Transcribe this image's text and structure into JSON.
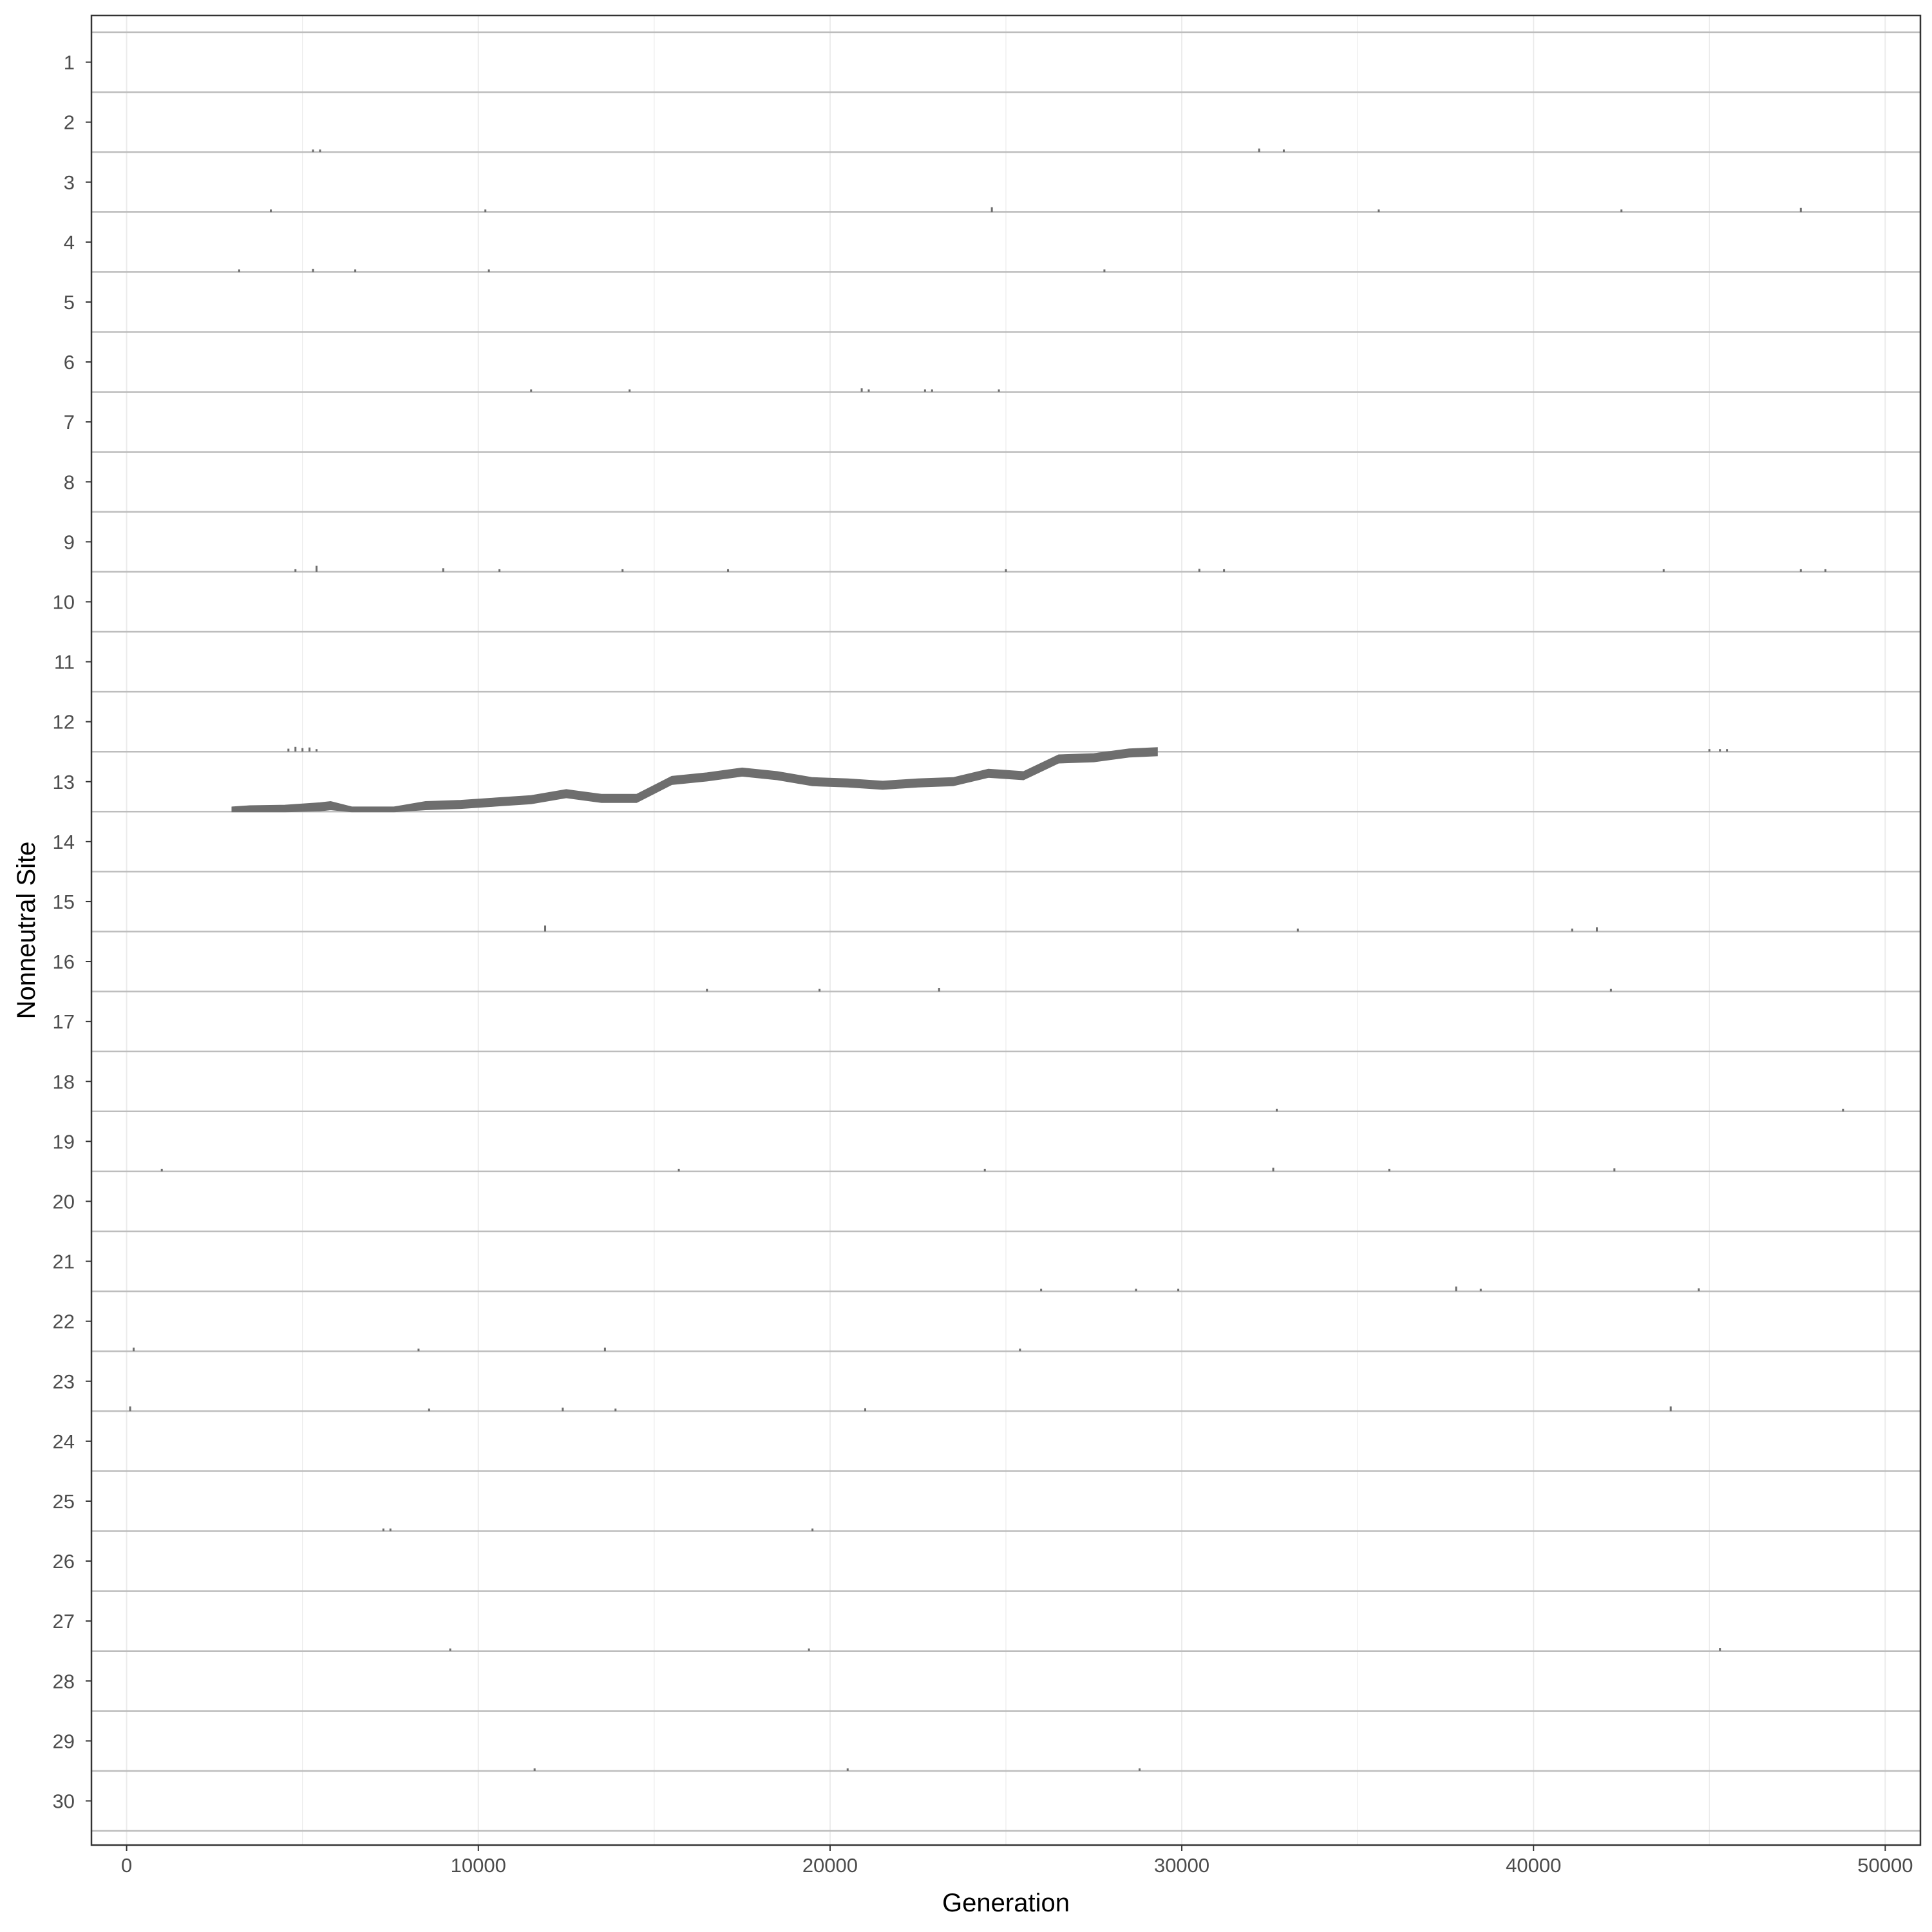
{
  "chart_data": {
    "type": "area",
    "title": "",
    "xlabel": "Generation",
    "ylabel": "Nonneutral Site",
    "xlim": [
      -1000,
      51000
    ],
    "x_ticks": [
      0,
      10000,
      20000,
      30000,
      40000,
      50000
    ],
    "x_tick_labels": [
      "0",
      "10000",
      "20000",
      "30000",
      "40000",
      "50000"
    ],
    "sites": [
      "1",
      "2",
      "3",
      "4",
      "5",
      "6",
      "7",
      "8",
      "9",
      "10",
      "11",
      "12",
      "13",
      "14",
      "15",
      "16",
      "17",
      "18",
      "19",
      "20",
      "21",
      "22",
      "23",
      "24",
      "25",
      "26",
      "27",
      "28",
      "29",
      "30"
    ],
    "value_scale": "allele frequency (0-1) drawn as ridge height within each site row",
    "grid": true,
    "legend": "none",
    "colors": {
      "ridge": "#6e6e6e",
      "baseline": "#bdbdbd",
      "grid": "#ebebeb",
      "panel_border": "#333333"
    },
    "series": [
      {
        "site": "2",
        "x": [
          5300,
          5500,
          32200,
          32900
        ],
        "y": [
          0.04,
          0.03,
          0.06,
          0.03
        ]
      },
      {
        "site": "3",
        "x": [
          4100,
          10200,
          24600,
          35600,
          42500,
          47600
        ],
        "y": [
          0.03,
          0.03,
          0.08,
          0.04,
          0.03,
          0.07
        ]
      },
      {
        "site": "4",
        "x": [
          3200,
          5300,
          6500,
          10300,
          27800
        ],
        "y": [
          0.03,
          0.05,
          0.04,
          0.03,
          0.04
        ]
      },
      {
        "site": "6",
        "x": [
          11500,
          14300,
          20900,
          21100,
          22700,
          22900,
          24800
        ],
        "y": [
          0.03,
          0.03,
          0.06,
          0.04,
          0.04,
          0.04,
          0.03
        ]
      },
      {
        "site": "9",
        "x": [
          4800,
          5400,
          9000,
          10600,
          14100,
          17100,
          25000,
          30500,
          31200,
          43700,
          47600,
          48300
        ],
        "y": [
          0.04,
          0.1,
          0.06,
          0.04,
          0.03,
          0.04,
          0.04,
          0.05,
          0.03,
          0.04,
          0.04,
          0.03
        ]
      },
      {
        "site": "12",
        "x": [
          4600,
          4800,
          5000,
          5200,
          5400,
          45000,
          45300,
          45500
        ],
        "y": [
          0.05,
          0.08,
          0.06,
          0.07,
          0.04,
          0.03,
          0.04,
          0.03
        ]
      },
      {
        "site": "13",
        "x": [
          3000,
          3500,
          4500,
          5500,
          5800,
          6400,
          7600,
          8500,
          9500,
          10500,
          11500,
          12500,
          13500,
          14500,
          15500,
          16500,
          17500,
          18500,
          19500,
          20500,
          21500,
          22500,
          23500,
          24500,
          25500,
          26500,
          27500,
          28500,
          29300
        ],
        "y": [
          0.01,
          0.03,
          0.04,
          0.08,
          0.1,
          0.01,
          0.01,
          0.1,
          0.12,
          0.16,
          0.2,
          0.3,
          0.22,
          0.22,
          0.52,
          0.58,
          0.66,
          0.6,
          0.5,
          0.48,
          0.44,
          0.48,
          0.5,
          0.64,
          0.6,
          0.88,
          0.9,
          0.98,
          1.0
        ]
      },
      {
        "site": "15",
        "x": [
          11900,
          33300,
          41100,
          41800
        ],
        "y": [
          0.1,
          0.05,
          0.05,
          0.07
        ]
      },
      {
        "site": "16",
        "x": [
          16500,
          19700,
          23100,
          42200
        ],
        "y": [
          0.03,
          0.03,
          0.06,
          0.02
        ]
      },
      {
        "site": "18",
        "x": [
          32700,
          48800
        ],
        "y": [
          0.04,
          0.04
        ]
      },
      {
        "site": "19",
        "x": [
          1000,
          15700,
          24400,
          32600,
          35900,
          42300
        ],
        "y": [
          0.03,
          0.03,
          0.03,
          0.06,
          0.04,
          0.05
        ]
      },
      {
        "site": "21",
        "x": [
          26000,
          28700,
          29900,
          37800,
          38500,
          44700
        ],
        "y": [
          0.04,
          0.03,
          0.04,
          0.08,
          0.04,
          0.05
        ]
      },
      {
        "site": "22",
        "x": [
          200,
          8300,
          13600,
          25400
        ],
        "y": [
          0.06,
          0.03,
          0.06,
          0.04
        ]
      },
      {
        "site": "23",
        "x": [
          100,
          8600,
          12400,
          13900,
          21000,
          43900
        ],
        "y": [
          0.08,
          0.03,
          0.06,
          0.03,
          0.05,
          0.08
        ]
      },
      {
        "site": "25",
        "x": [
          7300,
          7500,
          19500
        ],
        "y": [
          0.02,
          0.04,
          0.02
        ]
      },
      {
        "site": "27",
        "x": [
          9200,
          19400,
          45300
        ],
        "y": [
          0.03,
          0.03,
          0.05
        ]
      },
      {
        "site": "29",
        "x": [
          11600,
          20500,
          28800
        ],
        "y": [
          0.03,
          0.03,
          0.03
        ]
      }
    ]
  }
}
